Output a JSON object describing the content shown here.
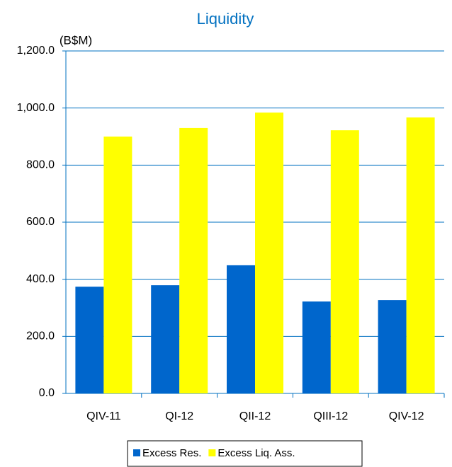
{
  "chart_data": {
    "type": "bar",
    "title": "Liquidity",
    "y_label": "(B$M)",
    "categories": [
      "QIV-11",
      "QI-12",
      "QII-12",
      "QIII-12",
      "QIV-12"
    ],
    "series": [
      {
        "name": "Excess Res.",
        "color": "#0066cc",
        "values": [
          374,
          379,
          449,
          322,
          327
        ]
      },
      {
        "name": "Excess Liq. Ass.",
        "color": "#ffff00",
        "values": [
          900,
          930,
          984,
          922,
          967
        ]
      }
    ],
    "ylim": [
      0,
      1200
    ],
    "yticks": [
      {
        "value": 0,
        "label": "0.0"
      },
      {
        "value": 200,
        "label": "200.0"
      },
      {
        "value": 400,
        "label": "400.0"
      },
      {
        "value": 600,
        "label": "600.0"
      },
      {
        "value": 800,
        "label": "800.0"
      },
      {
        "value": 1000,
        "label": "1,000.0"
      },
      {
        "value": 1200,
        "label": "1,200.0"
      }
    ],
    "grid": true,
    "legend": "bottom"
  }
}
